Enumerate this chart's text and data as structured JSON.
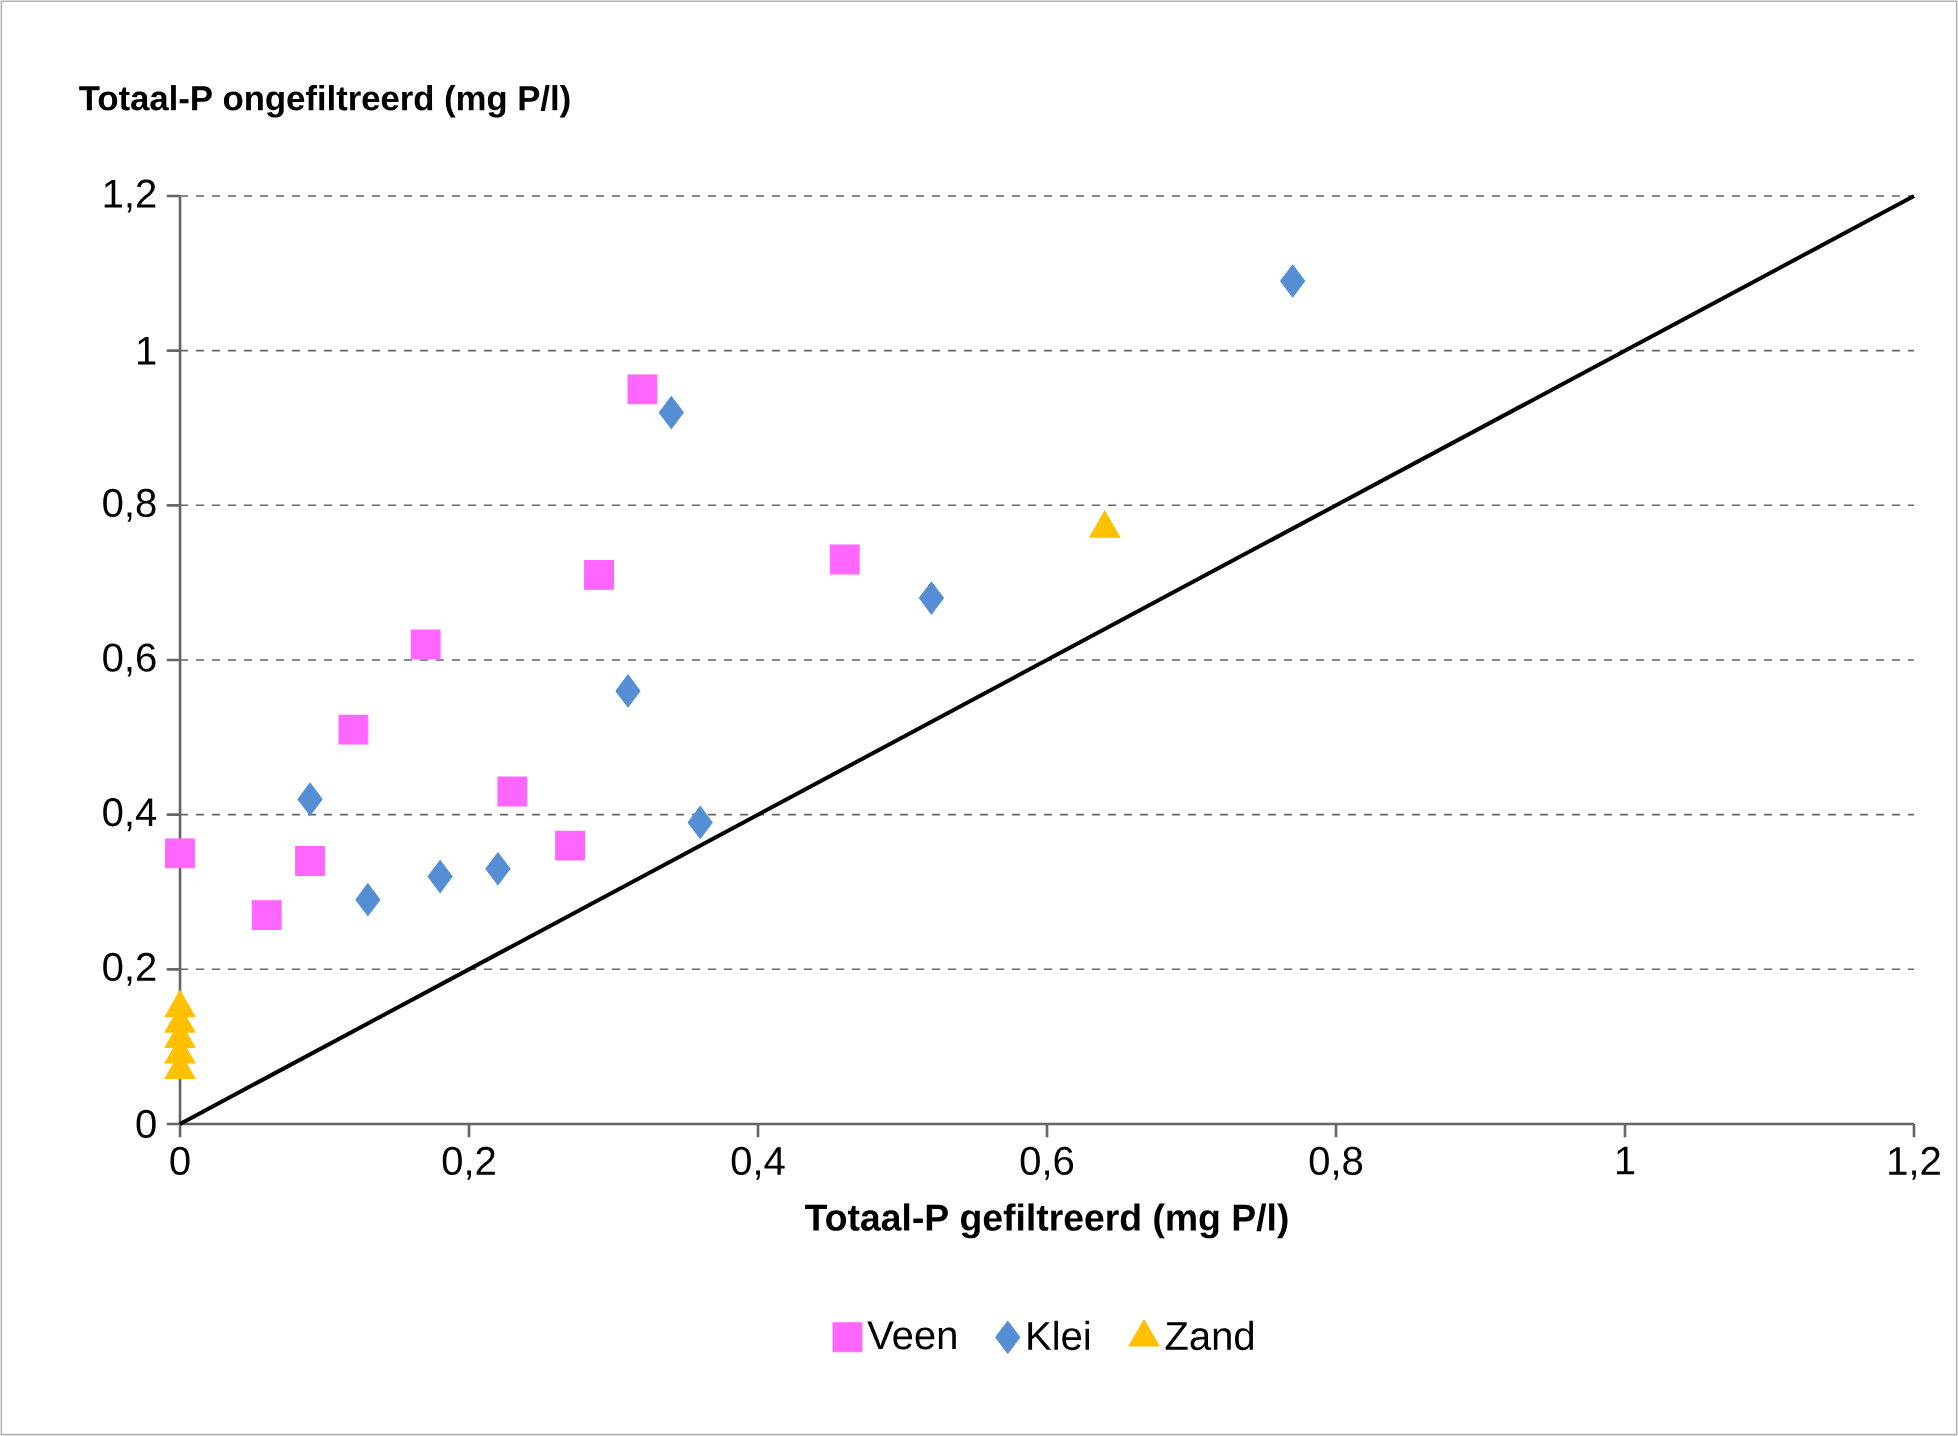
{
  "chart_data": {
    "type": "scatter",
    "ylabel": "Totaal-P ongefiltreerd (mg P/l)",
    "xlabel": "Totaal-P gefiltreerd (mg P/l)",
    "xlim": [
      0,
      1.2
    ],
    "ylim": [
      0,
      1.2
    ],
    "xticks": [
      0,
      {
        "value": 0.2,
        "label": "0,2"
      },
      {
        "value": 0.4,
        "label": "0,4"
      },
      {
        "value": 0.6,
        "label": "0,6"
      },
      {
        "value": 0.8,
        "label": "0,8"
      },
      1,
      {
        "value": 1.2,
        "label": "1,2"
      }
    ],
    "yticks": [
      0,
      {
        "value": 0.2,
        "label": "0,2"
      },
      {
        "value": 0.4,
        "label": "0,4"
      },
      {
        "value": 0.6,
        "label": "0,6"
      },
      {
        "value": 0.8,
        "label": "0,8"
      },
      1,
      {
        "value": 1.2,
        "label": "1,2"
      }
    ],
    "grid": "y",
    "legend": "bottom",
    "series": [
      {
        "name": "Veen",
        "color": "#ff66ff",
        "marker": "square",
        "x": [
          0,
          0.06,
          0.09,
          0.12,
          0.17,
          0.23,
          0.27,
          0.29,
          0.32,
          0.46
        ],
        "values": [
          0.35,
          0.27,
          0.34,
          0.51,
          0.62,
          0.43,
          0.36,
          0.71,
          0.95,
          0.73
        ]
      },
      {
        "name": "Klei",
        "color": "#558ed5",
        "marker": "diamond",
        "x": [
          0.09,
          0.13,
          0.18,
          0.22,
          0.31,
          0.34,
          0.36,
          0.52,
          0.77
        ],
        "values": [
          0.42,
          0.29,
          0.32,
          0.33,
          0.56,
          0.92,
          0.39,
          0.68,
          1.09
        ]
      },
      {
        "name": "Zand",
        "color": "#ffc000",
        "marker": "triangle",
        "x": [
          0,
          0,
          0,
          0,
          0,
          0.64
        ],
        "values": [
          0.07,
          0.09,
          0.11,
          0.13,
          0.15,
          0.77
        ]
      },
      {
        "type": "line",
        "color": "#000000",
        "marker": "none",
        "line_style": "solid",
        "x": [
          0,
          1.2
        ],
        "values": [
          0,
          1.2
        ]
      }
    ]
  }
}
